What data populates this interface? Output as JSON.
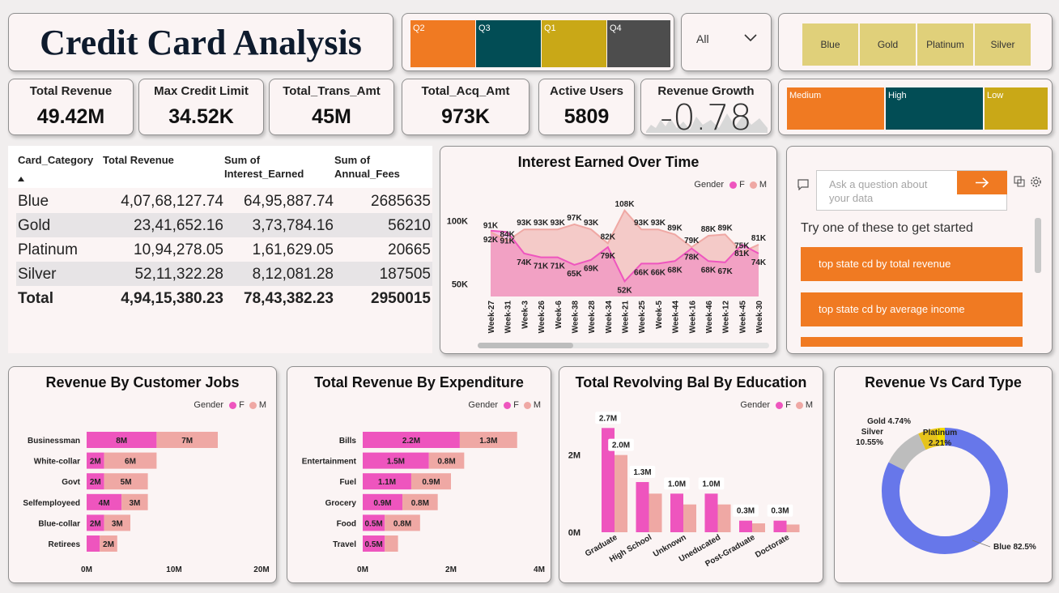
{
  "header": {
    "title": "Credit Card Analysis"
  },
  "quarter_slicer": [
    {
      "label": "Q2",
      "color": "#f07a22"
    },
    {
      "label": "Q3",
      "color": "#024d55"
    },
    {
      "label": "Q1",
      "color": "#c9a817"
    },
    {
      "label": "Q4",
      "color": "#4d4d4d"
    }
  ],
  "dropdown": {
    "value": "All"
  },
  "card_slicer": [
    "Blue",
    "Gold",
    "Platinum",
    "Silver"
  ],
  "income_slicer": [
    {
      "label": "Medium",
      "color": "#f07a22"
    },
    {
      "label": "High",
      "color": "#024d55"
    },
    {
      "label": "Low",
      "color": "#c9a817"
    }
  ],
  "kpis": [
    {
      "label": "Total Revenue",
      "value": "49.42M"
    },
    {
      "label": "Max Credit Limit",
      "value": "34.52K"
    },
    {
      "label": "Total_Trans_Amt",
      "value": "45M"
    },
    {
      "label": "Total_Acq_Amt",
      "value": "973K"
    },
    {
      "label": "Active Users",
      "value": "5809"
    },
    {
      "label": "Revenue Growth",
      "value": "-0.78"
    }
  ],
  "table": {
    "headers": [
      "Card_Category",
      "Total Revenue",
      "Sum of Interest_Earned",
      "Sum of Annual_Fees"
    ],
    "rows": [
      [
        "Blue",
        "4,07,68,127.74",
        "64,95,887.74",
        "2685635"
      ],
      [
        "Gold",
        "23,41,652.16",
        "3,73,784.16",
        "56210"
      ],
      [
        "Platinum",
        "10,94,278.05",
        "1,61,629.05",
        "20665"
      ],
      [
        "Silver",
        "52,11,322.28",
        "8,12,081.28",
        "187505"
      ]
    ],
    "total": [
      "Total",
      "4,94,15,380.23",
      "78,43,382.23",
      "2950015"
    ]
  },
  "legend": {
    "title": "Gender",
    "f": "F",
    "m": "M"
  },
  "qa": {
    "placeholder": "Ask a question about your data",
    "prompt": "Try one of these to get started",
    "suggestions": [
      "top state cd by total revenue",
      "top state cd by average income"
    ]
  },
  "colors": {
    "female": "#ee55be",
    "male": "#efa8a4",
    "blue_slice": "#6777ea",
    "silver_slice": "#bdbdbd",
    "gold_slice": "#e6c31c",
    "platinum_slice": "#f3db00"
  },
  "chart_data": [
    {
      "type": "area",
      "title": "Interest Earned Over Time",
      "x": [
        "Week-27",
        "Week-31",
        "Week-3",
        "Week-26",
        "Week-6",
        "Week-38",
        "Week-28",
        "Week-34",
        "Week-21",
        "Week-25",
        "Week-5",
        "Week-44",
        "Week-16",
        "Week-46",
        "Week-12",
        "Week-45",
        "Week-30"
      ],
      "ytick_labels": [
        "100K",
        "50K"
      ],
      "yticks": [
        100000,
        50000
      ],
      "ylim": [
        40000,
        120000
      ],
      "series": [
        {
          "name": "F",
          "values": [
            92000,
            91000,
            74000,
            71000,
            71000,
            65000,
            69000,
            79000,
            52000,
            66000,
            66000,
            68000,
            78000,
            68000,
            67000,
            81000,
            74000
          ],
          "labels": [
            "92K",
            "91K",
            "74K",
            "71K",
            "71K",
            "65K",
            "69K",
            "79K",
            "52K",
            "66K",
            "66K",
            "68K",
            "78K",
            "68K",
            "67K",
            "81K",
            "74K"
          ]
        },
        {
          "name": "M",
          "values": [
            91000,
            84000,
            93000,
            93000,
            93000,
            97000,
            93000,
            82000,
            108000,
            93000,
            93000,
            89000,
            79000,
            88000,
            89000,
            75000,
            81000
          ],
          "labels": [
            "91K",
            "84K",
            "93K",
            "93K",
            "93K",
            "97K",
            "93K",
            "82K",
            "108K",
            "93K",
            "93K",
            "89K",
            "79K",
            "88K",
            "89K",
            "75K",
            "81K"
          ]
        }
      ]
    },
    {
      "type": "bar",
      "orientation": "horizontal-stacked",
      "title": "Revenue By Customer Jobs",
      "categories": [
        "Businessman",
        "White-collar",
        "Govt",
        "Selfemployeed",
        "Blue-collar",
        "Retirees"
      ],
      "series": [
        {
          "name": "F",
          "values": [
            8,
            2,
            2,
            4,
            2,
            1.5
          ],
          "labels": [
            "8M",
            "2M",
            "2M",
            "4M",
            "2M",
            ""
          ]
        },
        {
          "name": "M",
          "values": [
            7,
            6,
            5,
            3,
            3,
            2
          ],
          "labels": [
            "7M",
            "6M",
            "5M",
            "3M",
            "3M",
            "2M"
          ]
        }
      ],
      "xtick_labels": [
        "0M",
        "10M",
        "20M"
      ],
      "xticks": [
        0,
        10,
        20
      ],
      "xlim": [
        0,
        20
      ]
    },
    {
      "type": "bar",
      "orientation": "horizontal-stacked",
      "title": "Total Revenue By Expenditure",
      "categories": [
        "Bills",
        "Entertainment",
        "Fuel",
        "Grocery",
        "Food",
        "Travel"
      ],
      "series": [
        {
          "name": "F",
          "values": [
            2.2,
            1.5,
            1.1,
            0.9,
            0.5,
            0.5
          ],
          "labels": [
            "2.2M",
            "1.5M",
            "1.1M",
            "0.9M",
            "0.5M",
            "0.5M"
          ]
        },
        {
          "name": "M",
          "values": [
            1.3,
            0.8,
            0.9,
            0.8,
            0.8,
            0.3
          ],
          "labels": [
            "1.3M",
            "0.8M",
            "0.9M",
            "0.8M",
            "0.8M",
            ""
          ]
        }
      ],
      "xtick_labels": [
        "0M",
        "2M",
        "4M"
      ],
      "xticks": [
        0,
        2,
        4
      ],
      "xlim": [
        0,
        4
      ]
    },
    {
      "type": "bar",
      "orientation": "vertical-clustered",
      "title": "Total Revolving Bal By Education",
      "categories": [
        "Graduate",
        "High School",
        "Unknown",
        "Uneducated",
        "Post-Graduate",
        "Doctorate"
      ],
      "series": [
        {
          "name": "F",
          "values": [
            2.7,
            1.3,
            1.0,
            1.0,
            0.3,
            0.3
          ],
          "labels": [
            "2.7M",
            "1.3M",
            "1.0M",
            "1.0M",
            "0.3M",
            "0.3M"
          ]
        },
        {
          "name": "M",
          "values": [
            2.0,
            1.0,
            0.72,
            0.72,
            0.23,
            0.2
          ],
          "labels": [
            "2.0M",
            "",
            "",
            "",
            "",
            ""
          ]
        }
      ],
      "ytick_labels": [
        "2M",
        "0M"
      ],
      "yticks": [
        2,
        0
      ],
      "ylim": [
        0,
        3
      ]
    },
    {
      "type": "pie",
      "title": "Revenue Vs Card Type",
      "categories": [
        "Blue",
        "Silver",
        "Gold",
        "Platinum"
      ],
      "values": [
        82.5,
        10.55,
        4.74,
        2.21
      ],
      "labels": [
        "Blue 82.5%",
        "Silver 10.55%",
        "Gold 4.74%",
        "Platinum 2.21%"
      ]
    }
  ]
}
